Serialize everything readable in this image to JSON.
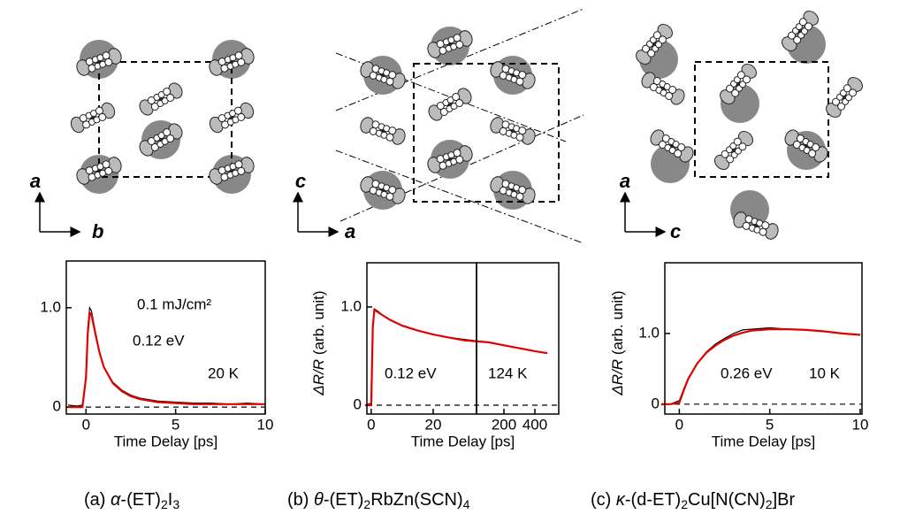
{
  "chart_data": [
    {
      "type": "line",
      "xlabel": "Time Delay [ps]",
      "xlim": [
        -1.1,
        10
      ],
      "xticks": [
        0,
        5,
        10
      ],
      "ylim": [
        -0.07,
        1.47
      ],
      "yticks": [
        0,
        {
          "value": 1,
          "label": "1.0"
        }
      ],
      "annotations": [
        "0.1 mJ/cm²",
        "0.12 eV",
        "20 K"
      ],
      "x": [
        -1,
        -0.5,
        -0.2,
        0,
        0.1,
        0.2,
        0.3,
        0.5,
        0.75,
        1,
        1.5,
        2,
        2.5,
        3,
        4,
        5,
        6,
        7,
        8,
        9,
        10
      ],
      "series": [
        {
          "color": "#000000",
          "values": [
            0.02,
            0.01,
            0.02,
            0.3,
            0.8,
            1.0,
            0.97,
            0.78,
            0.55,
            0.4,
            0.25,
            0.17,
            0.12,
            0.09,
            0.06,
            0.05,
            0.04,
            0.04,
            0.03,
            0.04,
            0.03
          ]
        },
        {
          "color": "#e00000",
          "values": [
            0,
            0,
            0,
            0.3,
            0.75,
            0.95,
            0.93,
            0.76,
            0.55,
            0.4,
            0.24,
            0.16,
            0.11,
            0.08,
            0.05,
            0.04,
            0.03,
            0.03,
            0.03,
            0.03,
            0.03
          ]
        }
      ]
    },
    {
      "type": "line",
      "xlabel": "Time Delay [ps]",
      "ylabel": [
        "ΔR/R",
        " (arb. unit)"
      ],
      "x_segments": [
        {
          "xlim": [
            -1.4,
            34
          ],
          "xticks": [
            0,
            20
          ]
        },
        {
          "xlim": [
            23,
            554
          ],
          "xticks": [
            200,
            400
          ]
        }
      ],
      "ylim": [
        -0.09,
        1.45
      ],
      "yticks": [
        0,
        {
          "value": 1,
          "label": "1.0"
        }
      ],
      "annotations": [
        "0.12 eV",
        "124 K"
      ],
      "x": [
        -2,
        0,
        0.5,
        1,
        2,
        4,
        6,
        8,
        10,
        15,
        20,
        25,
        30,
        100,
        200,
        300,
        400,
        480
      ],
      "series": [
        {
          "color": "#000000",
          "values": [
            0,
            0.02,
            0.8,
            0.98,
            0.96,
            0.91,
            0.87,
            0.84,
            0.81,
            0.76,
            0.72,
            0.69,
            0.67,
            0.64,
            0.61,
            0.58,
            0.55,
            0.53
          ]
        },
        {
          "color": "#e00000",
          "values": [
            0,
            0,
            0.8,
            0.97,
            0.95,
            0.91,
            0.87,
            0.84,
            0.81,
            0.76,
            0.72,
            0.69,
            0.66,
            0.64,
            0.61,
            0.58,
            0.55,
            0.53
          ]
        }
      ]
    },
    {
      "type": "line",
      "xlabel": "Time Delay [ps]",
      "ylabel": [
        "ΔR/R",
        " (arb. unit)"
      ],
      "xlim": [
        -0.8,
        10.1
      ],
      "xticks": [
        0,
        5,
        10
      ],
      "ylim": [
        -0.14,
        2.0
      ],
      "yticks": [
        0,
        {
          "value": 1,
          "label": "1.0"
        }
      ],
      "annotations": [
        "0.26 eV",
        "10 K"
      ],
      "x": [
        -1,
        -0.5,
        0,
        0.25,
        0.5,
        1,
        1.5,
        2,
        2.5,
        3,
        3.5,
        4,
        5,
        6,
        7,
        8,
        9,
        10
      ],
      "series": [
        {
          "color": "#000000",
          "values": [
            -0.01,
            0,
            0.05,
            0.22,
            0.37,
            0.58,
            0.74,
            0.85,
            0.93,
            1.0,
            1.05,
            1.06,
            1.08,
            1.06,
            1.05,
            1.03,
            1.0,
            0.98
          ]
        },
        {
          "color": "#e00000",
          "values": [
            0,
            0,
            0.02,
            0.2,
            0.36,
            0.58,
            0.73,
            0.83,
            0.91,
            0.97,
            1.01,
            1.04,
            1.06,
            1.06,
            1.05,
            1.03,
            1.0,
            0.98
          ]
        }
      ]
    }
  ],
  "structures": [
    {
      "vertical": "a",
      "horizontal": "b"
    },
    {
      "vertical": "c",
      "horizontal": "a"
    },
    {
      "vertical": "a",
      "horizontal": "c"
    }
  ],
  "captions": [
    [
      "(a) ",
      "α",
      "-(ET)",
      "2",
      "I",
      "3"
    ],
    [
      "(b) ",
      "θ",
      "-(ET)",
      "2",
      "RbZn(SCN)",
      "4"
    ],
    [
      "(c) ",
      "κ",
      "-(d-ET)",
      "2",
      "Cu[N(CN)",
      "2",
      "]Br"
    ]
  ]
}
